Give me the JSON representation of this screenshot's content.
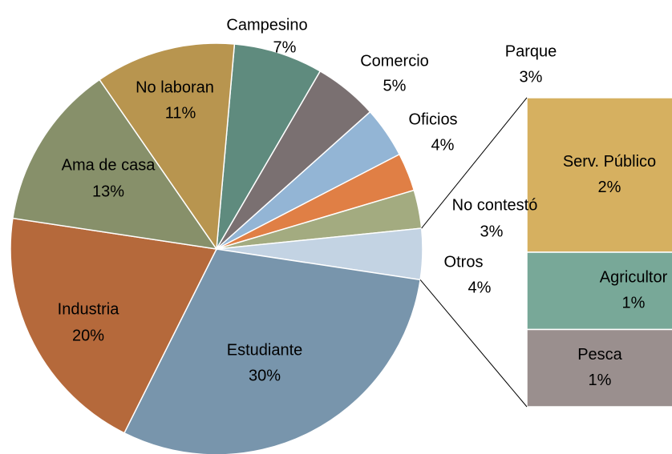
{
  "chart_data": {
    "type": "pie",
    "categories": [
      "Campesino",
      "Comercio",
      "Oficios",
      "Parque",
      "No contestó",
      "Otros",
      "Estudiante",
      "Industria",
      "Ama de casa",
      "No laboran"
    ],
    "values": [
      7,
      5,
      4,
      3,
      3,
      4,
      30,
      20,
      13,
      11
    ],
    "value_labels": [
      "7%",
      "5%",
      "4%",
      "3%",
      "3%",
      "4%",
      "30%",
      "20%",
      "13%",
      "11%"
    ],
    "colors": [
      "#5f8b7e",
      "#7a7071",
      "#93b5d5",
      "#e07f45",
      "#a3ab80",
      "#c3d3e3",
      "#7895ac",
      "#b5693b",
      "#87906a",
      "#b8954f"
    ],
    "breakdown": {
      "categories": [
        "Serv. Público",
        "Agricultor",
        "Pesca"
      ],
      "values": [
        2,
        1,
        1
      ],
      "value_labels": [
        "2%",
        "1%",
        "1%"
      ],
      "colors": [
        "#d6b060",
        "#78a898",
        "#9a8f8e"
      ]
    }
  }
}
